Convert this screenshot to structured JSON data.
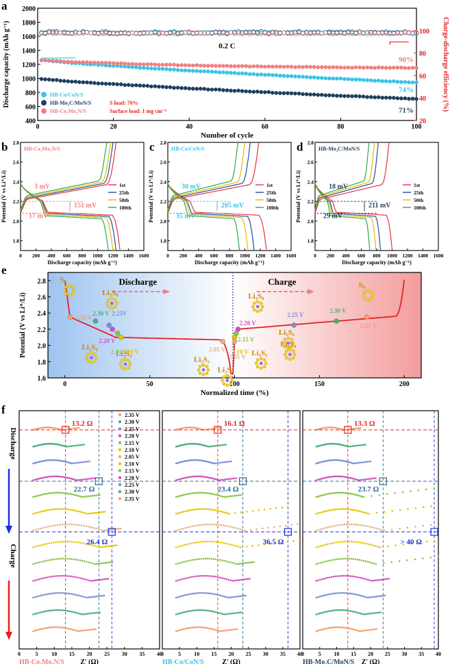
{
  "colors": {
    "c1": "#e8323c",
    "c25": "#1f4e9c",
    "c50": "#e8b800",
    "c100": "#2ea84a",
    "cyan": "#38c3e8",
    "navy": "#1e3f5f",
    "pink": "#f08080",
    "red": "#e82020"
  },
  "panel_labels": {
    "a": "a",
    "b": "b",
    "c": "c",
    "d": "d",
    "e": "e",
    "f": "f"
  },
  "chart_data": [
    {
      "type": "scatter",
      "id": "a",
      "xlabel": "Number of cycle",
      "ylabel": "Discharge capacity (mAh g⁻¹)",
      "y2label": "Charge-discharge efficiency (%)",
      "xlim": [
        0,
        100
      ],
      "ylim": [
        400,
        2000
      ],
      "y2lim": [
        20,
        120
      ],
      "xticks": [
        0,
        20,
        40,
        60,
        80,
        100
      ],
      "yticks": [
        400,
        600,
        800,
        1000,
        1200,
        1400,
        1600,
        1800,
        2000
      ],
      "y2ticks": [
        20,
        40,
        60,
        80,
        100
      ],
      "rate_label": "0.2 C",
      "series": [
        {
          "name": "HB-Co/CoN/S",
          "color": "#38c3e8",
          "start": 1270,
          "end": 940,
          "retention": "74%"
        },
        {
          "name": "HB-Mo₂C/MoN/S",
          "color": "#1e3f5f",
          "start": 1000,
          "end": 705,
          "retention": "71%"
        },
        {
          "name": "HB-Co₃Mo₃N/S",
          "color": "#f08080",
          "start": 1260,
          "end": 1135,
          "retention": "90%"
        }
      ],
      "efficiency": {
        "value": 98
      },
      "notes": [
        "S load: 70%",
        "Surface load: 1 mg cm⁻²"
      ]
    },
    {
      "type": "line",
      "id": "b",
      "title": "HB-Co₃Mo₃N/S",
      "xlabel": "Discharge capacity (mAh g⁻¹)",
      "ylabel": "Potential (V vs Li⁺/Li)",
      "xlim": [
        0,
        1600
      ],
      "ylim": [
        1.7,
        2.8
      ],
      "xticks": [
        0,
        200,
        400,
        600,
        800,
        1000,
        1200,
        1400,
        1600
      ],
      "yticks": [
        1.8,
        2.0,
        2.2,
        2.4,
        2.6,
        2.8
      ],
      "legend": [
        "1st",
        "25th",
        "50th",
        "100th"
      ],
      "cycles": [
        {
          "cap": 1290,
          "chg": 1240
        },
        {
          "cap": 1240,
          "chg": 1200
        },
        {
          "cap": 1200,
          "chg": 1170
        },
        {
          "cap": 1140,
          "chg": 1120
        }
      ],
      "annotations": [
        "3 mV",
        "151 mV",
        "17 mV"
      ]
    },
    {
      "type": "line",
      "id": "c",
      "title": "HB-Co/CoN/S",
      "xlabel": "Discharge capacity (mAh g⁻¹)",
      "ylabel": "Potential (V vs Li⁺/Li)",
      "xlim": [
        0,
        1600
      ],
      "ylim": [
        1.7,
        2.8
      ],
      "xticks": [
        0,
        200,
        400,
        600,
        800,
        1000,
        1200,
        1400,
        1600
      ],
      "yticks": [
        1.8,
        2.0,
        2.2,
        2.4,
        2.6,
        2.8
      ],
      "legend": [
        "1st",
        "25th",
        "50th",
        "100th"
      ],
      "cycles": [
        {
          "cap": 1280,
          "chg": 1180
        },
        {
          "cap": 1120,
          "chg": 1070
        },
        {
          "cap": 1040,
          "chg": 1000
        },
        {
          "cap": 930,
          "chg": 910
        }
      ],
      "annotations": [
        "30 mV",
        "205 mV",
        "35 mV"
      ]
    },
    {
      "type": "line",
      "id": "d",
      "title": "HB-Mo₂C/MoN/S",
      "xlabel": "Discharge capacity (mAh g⁻¹)",
      "ylabel": "Potential (V vs Li⁺/Li)",
      "xlim": [
        0,
        1600
      ],
      "ylim": [
        1.7,
        2.8
      ],
      "xticks": [
        0,
        200,
        400,
        600,
        800,
        1000,
        1200,
        1400,
        1600
      ],
      "yticks": [
        1.8,
        2.0,
        2.2,
        2.4,
        2.6,
        2.8
      ],
      "legend": [
        "1st",
        "25th",
        "50th",
        "100th"
      ],
      "cycles": [
        {
          "cap": 1000,
          "chg": 960
        },
        {
          "cap": 850,
          "chg": 820
        },
        {
          "cap": 790,
          "chg": 770
        },
        {
          "cap": 710,
          "chg": 700
        }
      ],
      "annotations": [
        "18 mV",
        "211 mV",
        "29 mV"
      ]
    },
    {
      "type": "line",
      "id": "e",
      "xlabel": "Normalized time (%)",
      "ylabel": "Potential (V vs Li⁺/Li)",
      "xlim": [
        -10,
        210
      ],
      "ylim": [
        1.6,
        2.9
      ],
      "xticks": [
        0,
        50,
        100,
        150,
        200
      ],
      "yticks": [
        1.6,
        1.8,
        2.0,
        2.2,
        2.4,
        2.6,
        2.8
      ],
      "region_labels": [
        "Discharge",
        "Charge"
      ],
      "points": [
        {
          "t": 3,
          "v": 2.35,
          "label": "2.35 V",
          "color": "#f4a070"
        },
        {
          "t": 18,
          "v": 2.3,
          "label": "2.30 V",
          "color": "#4caf7d"
        },
        {
          "t": 26,
          "v": 2.25,
          "label": "2.25V",
          "color": "#7e8ed4"
        },
        {
          "t": 28,
          "v": 2.2,
          "label": "2.20 V",
          "color": "#d050c0"
        },
        {
          "t": 31,
          "v": 2.15,
          "label": "2.15 V",
          "color": "#8bc34a"
        },
        {
          "t": 33,
          "v": 2.1,
          "label": "2.10 V",
          "color": "#e6c400"
        },
        {
          "t": 93,
          "v": 2.05,
          "label": "2.05 V",
          "color": "#e0b080"
        },
        {
          "t": 100,
          "v": 2.05,
          "label": "2.05 V",
          "color": "#e0b080"
        },
        {
          "t": 100,
          "v": 2.1,
          "label": "2.10 V",
          "color": "#e6c400"
        },
        {
          "t": 101,
          "v": 2.15,
          "label": "2.15 V",
          "color": "#8bc34a"
        },
        {
          "t": 102,
          "v": 2.2,
          "label": "2.20 V",
          "color": "#d050c0"
        },
        {
          "t": 135,
          "v": 2.25,
          "label": "2.25 V",
          "color": "#7e8ed4"
        },
        {
          "t": 160,
          "v": 2.3,
          "label": "2.30 V",
          "color": "#4caf7d"
        },
        {
          "t": 178,
          "v": 2.35,
          "label": "2.35 V",
          "color": "#f4a070"
        }
      ],
      "species": [
        "S₈",
        "Li₂S₈",
        "Li₂S₆",
        "Li₂S₄",
        "Li₂S₂",
        "Li₂S",
        "Li₂S₈",
        "Li₂S₆",
        "Li₂S₄",
        "Li₂S₂",
        "S₈"
      ]
    },
    {
      "type": "scatter",
      "id": "f",
      "xlabel": "Z' (Ω)",
      "xticks": [
        0,
        5,
        10,
        15,
        20,
        25,
        30,
        35,
        40
      ],
      "xlim": [
        0,
        40
      ],
      "row_labels": [
        "Discharge",
        "Charge"
      ],
      "voltages": [
        "2.35 V",
        "2.30 V",
        "2.25 V",
        "2.20 V",
        "2.15 V",
        "2.10 V",
        "2.05 V",
        "2.10 V",
        "2.15 V",
        "2.20 V",
        "2.25 V",
        "2.30 V",
        "2.35 V"
      ],
      "voltage_colors": [
        "#f4a070",
        "#4caf7d",
        "#7e8ed4",
        "#d050c0",
        "#8bc34a",
        "#e6c400",
        "#e0b080",
        "#e6c400",
        "#8bc34a",
        "#d050c0",
        "#7e8ed4",
        "#4caf7d",
        "#f4a070"
      ],
      "panels": [
        {
          "name": "HB-Co₃Mo₃N/S",
          "color": "#f08080",
          "r1": "13.2 Ω",
          "r2": "22.7 Ω",
          "r3": "26.4 Ω",
          "v1": 13.2,
          "v2": 22.7,
          "v3": 26.4
        },
        {
          "name": "HB-Co/CoN/S",
          "color": "#38c3e8",
          "r1": "16.1 Ω",
          "r2": "23.4 Ω",
          "r3": "36.5 Ω",
          "v1": 16.1,
          "v2": 23.4,
          "v3": 36.5
        },
        {
          "name": "HB-Mo₂C/MoN/S",
          "color": "#1e3f5f",
          "r1": "13.3 Ω",
          "r2": "23.7 Ω",
          "r3": "> 40 Ω",
          "v1": 13.3,
          "v2": 23.7,
          "v3": 38.8
        }
      ]
    }
  ]
}
